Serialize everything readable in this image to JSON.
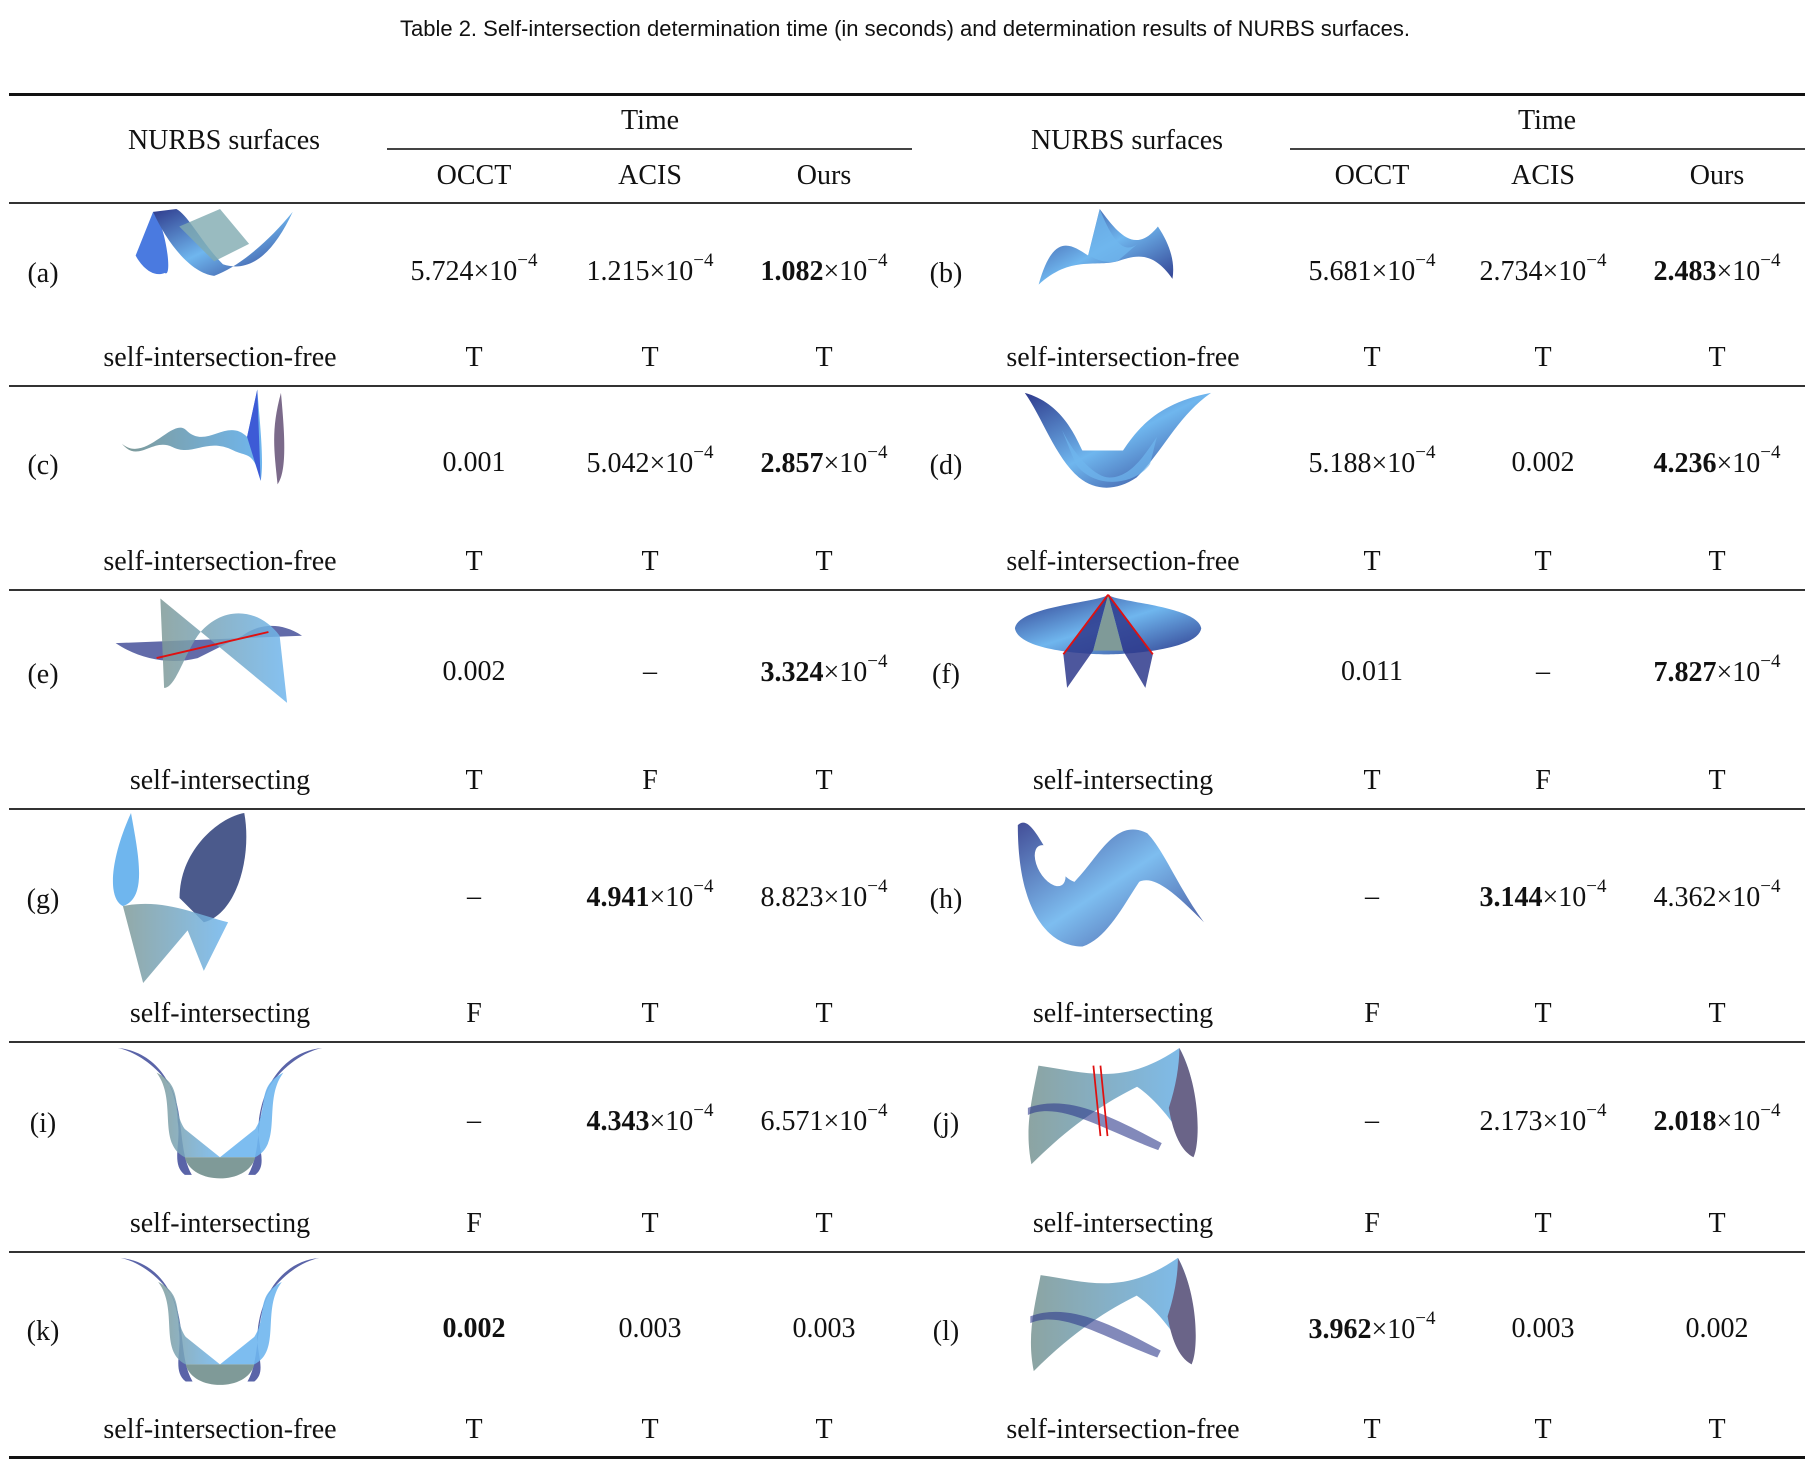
{
  "caption": "Table 2.  Self-intersection determination time (in seconds) and determination results of NURBS surfaces.",
  "header": {
    "surfaces_label": "NURBS surfaces",
    "time_label": "Time",
    "methods": [
      "OCCT",
      "ACIS",
      "Ours"
    ]
  },
  "colors": {
    "surface_dark": "#2e3a8c",
    "surface_light": "#6fb6ee",
    "surface_mid": "#7f9a98",
    "intersection_curve": "#e01010"
  },
  "rows": [
    {
      "left": {
        "label": "(a)",
        "shape": "saddle-wave",
        "status": "self-intersection-free",
        "times": [
          {
            "mantissa": "5.724",
            "exp": "−4",
            "bold": false
          },
          {
            "mantissa": "1.215",
            "exp": "−4",
            "bold": false
          },
          {
            "mantissa": "1.082",
            "exp": "−4",
            "bold": true
          }
        ],
        "results": [
          "T",
          "T",
          "T"
        ]
      },
      "right": {
        "label": "(b)",
        "shape": "wave-sheet",
        "status": "self-intersection-free",
        "times": [
          {
            "mantissa": "5.681",
            "exp": "−4",
            "bold": false
          },
          {
            "mantissa": "2.734",
            "exp": "−4",
            "bold": false
          },
          {
            "mantissa": "2.483",
            "exp": "−4",
            "bold": true
          }
        ],
        "results": [
          "T",
          "T",
          "T"
        ]
      }
    },
    {
      "left": {
        "label": "(c)",
        "shape": "spiky-wave",
        "status": "self-intersection-free",
        "times": [
          {
            "text": "0.001",
            "bold": false
          },
          {
            "mantissa": "5.042",
            "exp": "−4",
            "bold": false
          },
          {
            "mantissa": "2.857",
            "exp": "−4",
            "bold": true
          }
        ],
        "results": [
          "T",
          "T",
          "T"
        ]
      },
      "right": {
        "label": "(d)",
        "shape": "horn-saddle",
        "status": "self-intersection-free",
        "times": [
          {
            "mantissa": "5.188",
            "exp": "−4",
            "bold": false
          },
          {
            "text": "0.002",
            "bold": false
          },
          {
            "mantissa": "4.236",
            "exp": "−4",
            "bold": true
          }
        ],
        "results": [
          "T",
          "T",
          "T"
        ]
      }
    },
    {
      "left": {
        "label": "(e)",
        "shape": "twisted-sheet",
        "status": "self-intersecting",
        "times": [
          {
            "text": "0.002",
            "bold": false
          },
          {
            "text": "–",
            "bold": false
          },
          {
            "mantissa": "3.324",
            "exp": "−4",
            "bold": true
          }
        ],
        "results": [
          "T",
          "F",
          "T"
        ]
      },
      "right": {
        "label": "(f)",
        "shape": "cone-disc",
        "status": "self-intersecting",
        "times": [
          {
            "text": "0.011",
            "bold": false
          },
          {
            "text": "–",
            "bold": false
          },
          {
            "mantissa": "7.827",
            "exp": "−4",
            "bold": true
          }
        ],
        "results": [
          "T",
          "F",
          "T"
        ]
      }
    },
    {
      "left": {
        "label": "(g)",
        "shape": "folded-leaves",
        "status": "self-intersecting",
        "times": [
          {
            "text": "–",
            "bold": false
          },
          {
            "mantissa": "4.941",
            "exp": "−4",
            "bold": true
          },
          {
            "mantissa": "8.823",
            "exp": "−4",
            "bold": false
          }
        ],
        "results": [
          "F",
          "T",
          "T"
        ]
      },
      "right": {
        "label": "(h)",
        "shape": "looped-ribbon",
        "status": "self-intersecting",
        "times": [
          {
            "text": "–",
            "bold": false
          },
          {
            "mantissa": "3.144",
            "exp": "−4",
            "bold": true
          },
          {
            "mantissa": "4.362",
            "exp": "−4",
            "bold": false
          }
        ],
        "results": [
          "F",
          "T",
          "T"
        ]
      }
    },
    {
      "left": {
        "label": "(i)",
        "shape": "tulip",
        "status": "self-intersecting",
        "times": [
          {
            "text": "–",
            "bold": false
          },
          {
            "mantissa": "4.343",
            "exp": "−4",
            "bold": true
          },
          {
            "mantissa": "6.571",
            "exp": "−4",
            "bold": false
          }
        ],
        "results": [
          "F",
          "T",
          "T"
        ]
      },
      "right": {
        "label": "(j)",
        "shape": "crossed-band",
        "status": "self-intersecting",
        "times": [
          {
            "text": "–",
            "bold": false
          },
          {
            "mantissa": "2.173",
            "exp": "−4",
            "bold": false
          },
          {
            "mantissa": "2.018",
            "exp": "−4",
            "bold": true
          }
        ],
        "results": [
          "F",
          "T",
          "T"
        ]
      }
    },
    {
      "left": {
        "label": "(k)",
        "shape": "tulip",
        "status": "self-intersection-free",
        "times": [
          {
            "text": "0.002",
            "bold": true
          },
          {
            "text": "0.003",
            "bold": false
          },
          {
            "text": "0.003",
            "bold": false
          }
        ],
        "results": [
          "T",
          "T",
          "T"
        ]
      },
      "right": {
        "label": "(l)",
        "shape": "crossed-band",
        "status": "self-intersection-free",
        "times": [
          {
            "mantissa": "3.962",
            "exp": "−4",
            "bold": true
          },
          {
            "text": "0.003",
            "bold": false
          },
          {
            "text": "0.002",
            "bold": false
          }
        ],
        "results": [
          "T",
          "T",
          "T"
        ]
      }
    }
  ]
}
